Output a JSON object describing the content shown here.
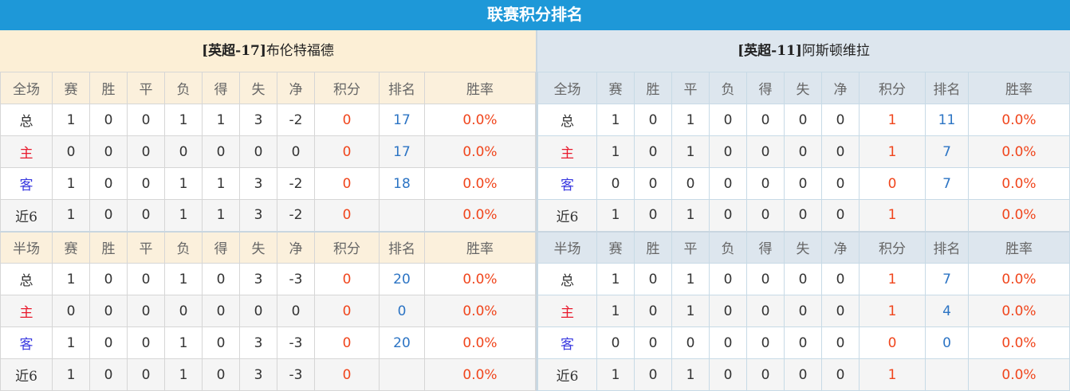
{
  "title": "联赛积分排名",
  "headers": {
    "full": "全场",
    "half": "半场",
    "cols": [
      "赛",
      "胜",
      "平",
      "负",
      "得",
      "失",
      "净",
      "积分",
      "排名",
      "胜率"
    ]
  },
  "colors": {
    "title_bg": "#1e98d8",
    "points": "#f0451c",
    "rank": "#2c74c4",
    "home": "#e8192c",
    "away": "#3a3ae0"
  },
  "teams": [
    {
      "prefix": "[英超-17]",
      "name": "布伦特福德",
      "full": [
        {
          "label": "总",
          "vals": [
            "1",
            "0",
            "0",
            "1",
            "1",
            "3",
            "-2",
            "0",
            "17",
            "0.0%"
          ]
        },
        {
          "label": "主",
          "vals": [
            "0",
            "0",
            "0",
            "0",
            "0",
            "0",
            "0",
            "0",
            "17",
            "0.0%"
          ]
        },
        {
          "label": "客",
          "vals": [
            "1",
            "0",
            "0",
            "1",
            "1",
            "3",
            "-2",
            "0",
            "18",
            "0.0%"
          ]
        },
        {
          "label": "近6",
          "vals": [
            "1",
            "0",
            "0",
            "1",
            "1",
            "3",
            "-2",
            "0",
            "",
            "0.0%"
          ]
        }
      ],
      "half": [
        {
          "label": "总",
          "vals": [
            "1",
            "0",
            "0",
            "1",
            "0",
            "3",
            "-3",
            "0",
            "20",
            "0.0%"
          ]
        },
        {
          "label": "主",
          "vals": [
            "0",
            "0",
            "0",
            "0",
            "0",
            "0",
            "0",
            "0",
            "0",
            "0.0%"
          ]
        },
        {
          "label": "客",
          "vals": [
            "1",
            "0",
            "0",
            "1",
            "0",
            "3",
            "-3",
            "0",
            "20",
            "0.0%"
          ]
        },
        {
          "label": "近6",
          "vals": [
            "1",
            "0",
            "0",
            "1",
            "0",
            "3",
            "-3",
            "0",
            "",
            "0.0%"
          ]
        }
      ]
    },
    {
      "prefix": "[英超-11]",
      "name": "阿斯顿维拉",
      "full": [
        {
          "label": "总",
          "vals": [
            "1",
            "0",
            "1",
            "0",
            "0",
            "0",
            "0",
            "1",
            "11",
            "0.0%"
          ]
        },
        {
          "label": "主",
          "vals": [
            "1",
            "0",
            "1",
            "0",
            "0",
            "0",
            "0",
            "1",
            "7",
            "0.0%"
          ]
        },
        {
          "label": "客",
          "vals": [
            "0",
            "0",
            "0",
            "0",
            "0",
            "0",
            "0",
            "0",
            "7",
            "0.0%"
          ]
        },
        {
          "label": "近6",
          "vals": [
            "1",
            "0",
            "1",
            "0",
            "0",
            "0",
            "0",
            "1",
            "",
            "0.0%"
          ]
        }
      ],
      "half": [
        {
          "label": "总",
          "vals": [
            "1",
            "0",
            "1",
            "0",
            "0",
            "0",
            "0",
            "1",
            "7",
            "0.0%"
          ]
        },
        {
          "label": "主",
          "vals": [
            "1",
            "0",
            "1",
            "0",
            "0",
            "0",
            "0",
            "1",
            "4",
            "0.0%"
          ]
        },
        {
          "label": "客",
          "vals": [
            "0",
            "0",
            "0",
            "0",
            "0",
            "0",
            "0",
            "0",
            "0",
            "0.0%"
          ]
        },
        {
          "label": "近6",
          "vals": [
            "1",
            "0",
            "1",
            "0",
            "0",
            "0",
            "0",
            "1",
            "",
            "0.0%"
          ]
        }
      ]
    }
  ]
}
